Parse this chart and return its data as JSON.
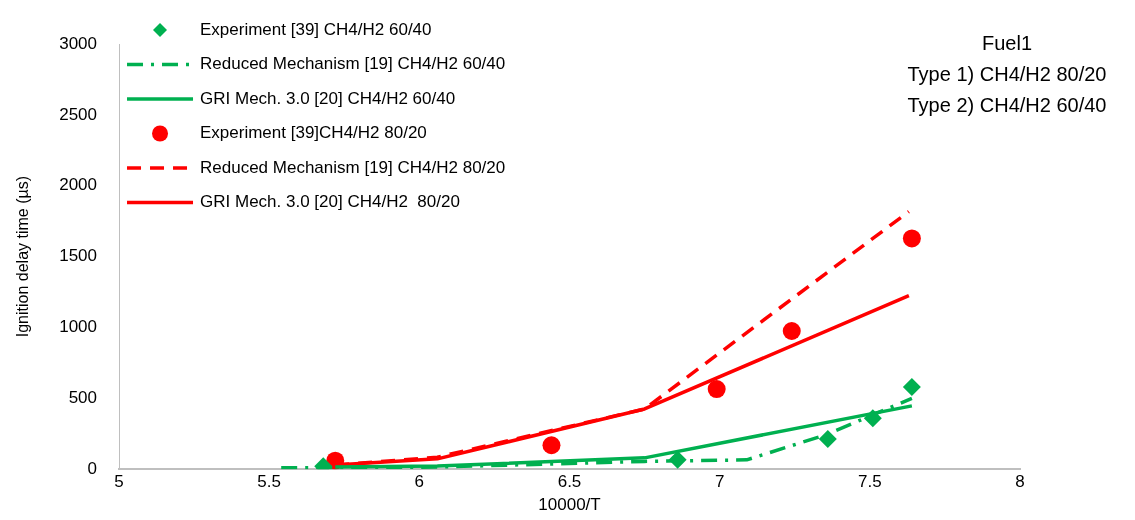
{
  "chart_data": {
    "type": "line",
    "xlabel": "10000/T",
    "ylabel": "Ignition delay time (µs)",
    "xlim": [
      5,
      8
    ],
    "xticks": [
      5,
      5.5,
      6,
      6.5,
      7,
      7.5,
      8
    ],
    "ylim": [
      0,
      3000
    ],
    "yticks": [
      0,
      500,
      1000,
      1500,
      2000,
      2500,
      3000
    ],
    "grid": false,
    "legend": "top left",
    "annotations": [
      "Fuel1",
      "Type 1) CH4/H2 80/20",
      "Type 2) CH4/H2 60/40"
    ],
    "series": [
      {
        "name": "Experiment [39] CH4/H2 60/40",
        "type": "scatter",
        "marker": "diamond",
        "color": "#00b050",
        "x": [
          5.68,
          6.86,
          7.36,
          7.51,
          7.64
        ],
        "values": [
          20,
          66,
          213,
          360,
          580
        ]
      },
      {
        "name": "Reduced Mechanism [19] CH4/H2 60/40",
        "type": "line",
        "line_style": "dashdot",
        "color": "#00b050",
        "x": [
          5.54,
          6.06,
          6.75,
          7.09,
          7.35,
          7.64
        ],
        "values": [
          10,
          15,
          55,
          66,
          240,
          500
        ]
      },
      {
        "name": "GRI Mech. 3.0 [20] CH4/H2 60/40",
        "type": "line",
        "line_style": "solid",
        "color": "#00b050",
        "x": [
          5.72,
          6.06,
          6.75,
          7.64
        ],
        "values": [
          15,
          22,
          80,
          447
        ]
      },
      {
        "name": "Experiment [39]CH4/H2 80/20",
        "type": "scatter",
        "marker": "circle",
        "color": "#ff0000",
        "x": [
          5.72,
          6.44,
          6.99,
          7.24,
          7.64
        ],
        "values": [
          60,
          169,
          565,
          975,
          1628
        ]
      },
      {
        "name": "Reduced Mechanism [19] CH4/H2 80/20",
        "type": "line",
        "line_style": "dashed",
        "color": "#ff0000",
        "x": [
          5.72,
          6.06,
          6.75,
          7.63
        ],
        "values": [
          30,
          85,
          425,
          1818
        ]
      },
      {
        "name": "GRI Mech. 3.0 [20] CH4/H2  80/20",
        "type": "line",
        "line_style": "solid",
        "color": "#ff0000",
        "x": [
          5.72,
          6.06,
          6.75,
          7.63
        ],
        "values": [
          30,
          73,
          425,
          1225
        ]
      }
    ]
  }
}
